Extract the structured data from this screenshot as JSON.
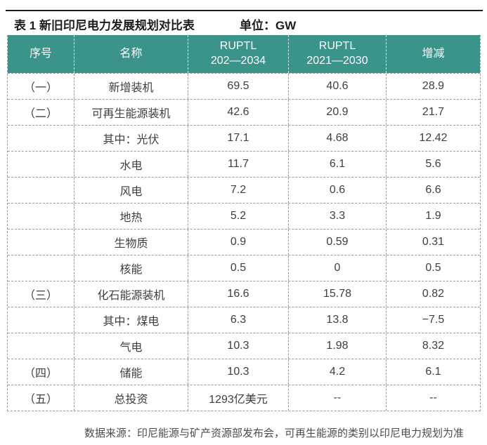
{
  "page": {
    "title": "表 1 新旧印尼电力发展规划对比表",
    "unit_label": "单位：GW"
  },
  "table": {
    "headers": [
      {
        "l1": "序号",
        "l2": ""
      },
      {
        "l1": "名称",
        "l2": ""
      },
      {
        "l1": "RUPTL",
        "l2": "202—2034"
      },
      {
        "l1": "RUPTL",
        "l2": "2021—2030"
      },
      {
        "l1": "增减",
        "l2": ""
      }
    ],
    "rows": [
      [
        "（一）",
        "新增装机",
        "69.5",
        "40.6",
        "28.9"
      ],
      [
        "（二）",
        "可再生能源装机",
        "42.6",
        "20.9",
        "21.7"
      ],
      [
        "",
        "其中：光伏",
        "17.1",
        "4.68",
        "12.42"
      ],
      [
        "",
        "水电",
        "11.7",
        "6.1",
        "5.6"
      ],
      [
        "",
        "风电",
        "7.2",
        "0.6",
        "6.6"
      ],
      [
        "",
        "地热",
        "5.2",
        "3.3",
        "1.9"
      ],
      [
        "",
        "生物质",
        "0.9",
        "0.59",
        "0.31"
      ],
      [
        "",
        "核能",
        "0.5",
        "0",
        "0.5"
      ],
      [
        "（三）",
        "化石能源装机",
        "16.6",
        "15.78",
        "0.82"
      ],
      [
        "",
        "其中：煤电",
        "6.3",
        "13.8",
        "−7.5"
      ],
      [
        "",
        "气电",
        "10.3",
        "1.98",
        "8.32"
      ],
      [
        "（四）",
        "储能",
        "10.3",
        "4.2",
        "6.1"
      ],
      [
        "（五）",
        "总投资",
        "1293亿美元",
        "--",
        "--"
      ]
    ]
  },
  "footer": {
    "source_note": "数据来源：印尼能源与矿产资源部发布会，可再生能源的类别以印尼电力规划为准"
  },
  "colors": {
    "header_bg": "#3a948a",
    "header_text": "#fdfdfd",
    "body_text": "#3f3f3f",
    "dashed_border": "#9b9b9b",
    "top_rule": "#1c1c1c"
  }
}
